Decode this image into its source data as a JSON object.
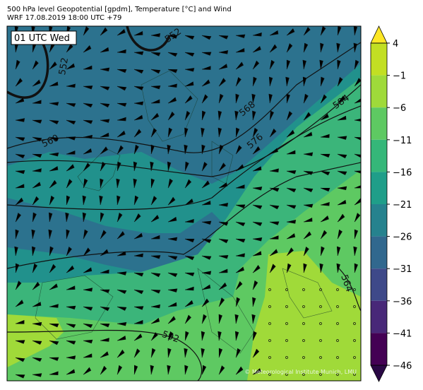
{
  "header": {
    "title": "500 hPa level Geopotential [gpdm], Temperature [°C] and Wind",
    "subtitle": "WRF 17.08.2019 18:00 UTC +79"
  },
  "map": {
    "time_label": "01 UTC Wed",
    "contour_labels": [
      "552",
      "552",
      "560",
      "568",
      "576",
      "584",
      "564",
      "592"
    ],
    "credit": "© Meteorological Institute Munich, LMU"
  },
  "colorbar": {
    "ticks": [
      4,
      {
        "value": -1,
        "label": "−1"
      },
      {
        "value": -6,
        "label": "−6"
      },
      {
        "value": -11,
        "label": "−11"
      },
      {
        "value": -16,
        "label": "−16"
      },
      {
        "value": -21,
        "label": "−21"
      },
      {
        "value": -26,
        "label": "−26"
      },
      {
        "value": -31,
        "label": "−31"
      },
      {
        "value": -36,
        "label": "−36"
      },
      {
        "value": -41,
        "label": "−41"
      },
      {
        "value": -46,
        "label": "−46"
      }
    ],
    "colors": [
      "#c2df23",
      "#9fda3a",
      "#5ec962",
      "#35b779",
      "#1f9e89",
      "#26828e",
      "#31688e",
      "#3e4989",
      "#482878",
      "#440154"
    ],
    "extend_colors": [
      "#fde725",
      "#2a0845"
    ]
  }
}
